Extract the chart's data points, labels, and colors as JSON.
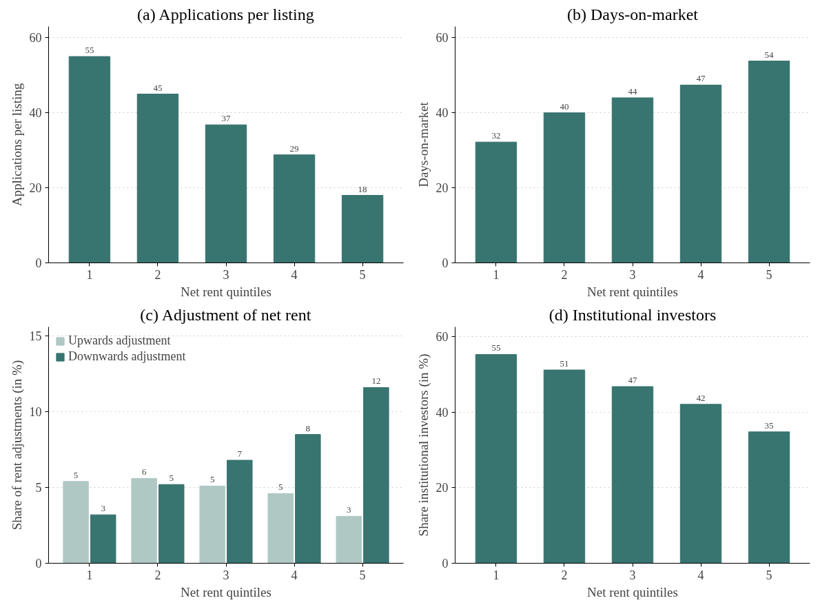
{
  "chart_data": [
    {
      "type": "bar",
      "title": "(a) Applications per listing",
      "categories": [
        "1",
        "2",
        "3",
        "4",
        "5"
      ],
      "xlabel": "Net rent quintiles",
      "ylabel": "Applications per listing",
      "values": [
        55.0,
        45.0,
        36.8,
        28.8,
        18.0
      ],
      "value_labels": [
        "55",
        "45",
        "37",
        "29",
        "18"
      ],
      "color": "#387470",
      "ylim": [
        0,
        63
      ],
      "yticks": [
        0,
        20,
        40,
        60
      ],
      "grid": "y"
    },
    {
      "type": "bar",
      "title": "(b) Days-on-market",
      "categories": [
        "1",
        "2",
        "3",
        "4",
        "5"
      ],
      "xlabel": "Net rent quintiles",
      "ylabel": "Days-on-market",
      "values": [
        32.2,
        40.0,
        44.0,
        47.4,
        53.8
      ],
      "value_labels": [
        "32",
        "40",
        "44",
        "47",
        "54"
      ],
      "color": "#387470",
      "ylim": [
        0,
        63
      ],
      "yticks": [
        0,
        20,
        40,
        60
      ],
      "grid": "y"
    },
    {
      "type": "bar",
      "title": "(c) Adjustment of net rent",
      "categories": [
        "1",
        "2",
        "3",
        "4",
        "5"
      ],
      "xlabel": "Net rent quintiles",
      "ylabel": "Share of rent adjustments (in %)",
      "series": [
        {
          "name": "Upwards adjustment",
          "color": "#afc8c4",
          "values": [
            5.4,
            5.6,
            5.1,
            4.6,
            3.1
          ],
          "value_labels": [
            "5",
            "6",
            "5",
            "5",
            "3"
          ]
        },
        {
          "name": "Downwards adjustment",
          "color": "#387470",
          "values": [
            3.2,
            5.2,
            6.8,
            8.5,
            11.6
          ],
          "value_labels": [
            "3",
            "5",
            "7",
            "8",
            "12"
          ]
        }
      ],
      "ylim": [
        0,
        15.6
      ],
      "yticks": [
        0,
        5,
        10,
        15
      ],
      "grid": "y",
      "legend": "top left"
    },
    {
      "type": "bar",
      "title": "(d) Institutional investors",
      "categories": [
        "1",
        "2",
        "3",
        "4",
        "5"
      ],
      "xlabel": "Net rent quintiles",
      "ylabel": "Share institutional investors (in %)",
      "values": [
        55.3,
        51.2,
        46.8,
        42.1,
        34.8
      ],
      "value_labels": [
        "55",
        "51",
        "47",
        "42",
        "35"
      ],
      "color": "#387470",
      "ylim": [
        0,
        62.6
      ],
      "yticks": [
        0,
        20,
        40,
        60
      ],
      "grid": "y"
    }
  ]
}
